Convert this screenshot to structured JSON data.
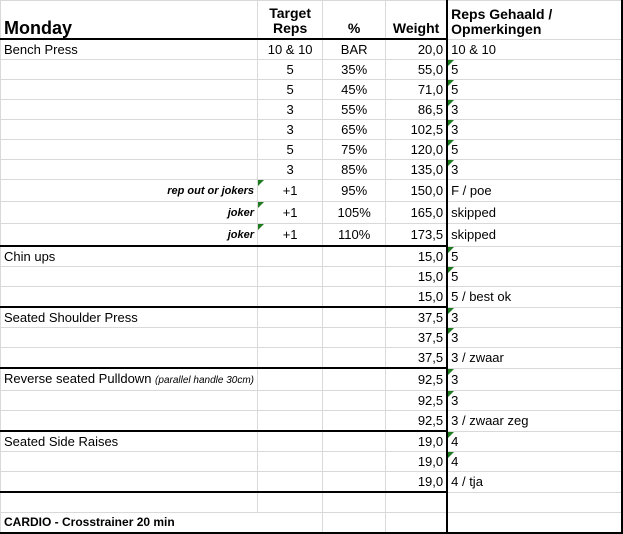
{
  "header": {
    "day": "Monday",
    "target_reps": "Target Reps",
    "percent": "%",
    "weight": "Weight",
    "reps_achieved": "Reps Gehaald / Opmerkingen"
  },
  "rows": [
    {
      "exercise": "Bench Press",
      "note": "",
      "label": "",
      "reps": "10 & 10",
      "pct": "BAR",
      "weight": "20,0",
      "result": "10 & 10",
      "flag": false,
      "labelflag": false,
      "sep": false
    },
    {
      "exercise": "",
      "note": "",
      "label": "",
      "reps": "5",
      "pct": "35%",
      "weight": "55,0",
      "result": "5",
      "flag": true,
      "labelflag": false,
      "sep": false
    },
    {
      "exercise": "",
      "note": "",
      "label": "",
      "reps": "5",
      "pct": "45%",
      "weight": "71,0",
      "result": "5",
      "flag": true,
      "labelflag": false,
      "sep": false
    },
    {
      "exercise": "",
      "note": "",
      "label": "",
      "reps": "3",
      "pct": "55%",
      "weight": "86,5",
      "result": "3",
      "flag": true,
      "labelflag": false,
      "sep": false
    },
    {
      "exercise": "",
      "note": "",
      "label": "",
      "reps": "3",
      "pct": "65%",
      "weight": "102,5",
      "result": "3",
      "flag": true,
      "labelflag": false,
      "sep": false
    },
    {
      "exercise": "",
      "note": "",
      "label": "",
      "reps": "5",
      "pct": "75%",
      "weight": "120,0",
      "result": "5",
      "flag": true,
      "labelflag": false,
      "sep": false
    },
    {
      "exercise": "",
      "note": "",
      "label": "",
      "reps": "3",
      "pct": "85%",
      "weight": "135,0",
      "result": "3",
      "flag": true,
      "labelflag": false,
      "sep": false
    },
    {
      "exercise": "",
      "note": "",
      "label": "rep out or jokers",
      "reps": "+1",
      "pct": "95%",
      "weight": "150,0",
      "result": "F / poe",
      "flag": false,
      "labelflag": true,
      "sep": false
    },
    {
      "exercise": "",
      "note": "",
      "label": "joker",
      "reps": "+1",
      "pct": "105%",
      "weight": "165,0",
      "result": "skipped",
      "flag": false,
      "labelflag": true,
      "sep": false
    },
    {
      "exercise": "",
      "note": "",
      "label": "joker",
      "reps": "+1",
      "pct": "110%",
      "weight": "173,5",
      "result": "skipped",
      "flag": false,
      "labelflag": true,
      "sep": false
    },
    {
      "exercise": "Chin ups",
      "note": "",
      "label": "",
      "reps": "",
      "pct": "",
      "weight": "15,0",
      "result": "5",
      "flag": true,
      "labelflag": false,
      "sep": true
    },
    {
      "exercise": "",
      "note": "",
      "label": "",
      "reps": "",
      "pct": "",
      "weight": "15,0",
      "result": "5",
      "flag": true,
      "labelflag": false,
      "sep": false
    },
    {
      "exercise": "",
      "note": "",
      "label": "",
      "reps": "",
      "pct": "",
      "weight": "15,0",
      "result": "5 / best ok",
      "flag": false,
      "labelflag": false,
      "sep": false
    },
    {
      "exercise": "Seated Shoulder Press",
      "note": "",
      "label": "",
      "reps": "",
      "pct": "",
      "weight": "37,5",
      "result": "3",
      "flag": true,
      "labelflag": false,
      "sep": true
    },
    {
      "exercise": "",
      "note": "",
      "label": "",
      "reps": "",
      "pct": "",
      "weight": "37,5",
      "result": "3",
      "flag": true,
      "labelflag": false,
      "sep": false
    },
    {
      "exercise": "",
      "note": "",
      "label": "",
      "reps": "",
      "pct": "",
      "weight": "37,5",
      "result": "3 / zwaar",
      "flag": false,
      "labelflag": false,
      "sep": false
    },
    {
      "exercise": "Reverse seated Pulldown",
      "note": "(parallel handle 30cm)",
      "label": "",
      "reps": "",
      "pct": "",
      "weight": "92,5",
      "result": "3",
      "flag": true,
      "labelflag": false,
      "sep": true
    },
    {
      "exercise": "",
      "note": "",
      "label": "",
      "reps": "",
      "pct": "",
      "weight": "92,5",
      "result": "3",
      "flag": true,
      "labelflag": false,
      "sep": false
    },
    {
      "exercise": "",
      "note": "",
      "label": "",
      "reps": "",
      "pct": "",
      "weight": "92,5",
      "result": "3 / zwaar zeg",
      "flag": false,
      "labelflag": false,
      "sep": false
    },
    {
      "exercise": "Seated Side Raises",
      "note": "",
      "label": "",
      "reps": "",
      "pct": "",
      "weight": "19,0",
      "result": "4",
      "flag": true,
      "labelflag": false,
      "sep": true
    },
    {
      "exercise": "",
      "note": "",
      "label": "",
      "reps": "",
      "pct": "",
      "weight": "19,0",
      "result": "4",
      "flag": true,
      "labelflag": false,
      "sep": false
    },
    {
      "exercise": "",
      "note": "",
      "label": "",
      "reps": "",
      "pct": "",
      "weight": "19,0",
      "result": "4 / tja",
      "flag": false,
      "labelflag": false,
      "sep": false
    },
    {
      "exercise": "",
      "note": "",
      "label": "",
      "reps": "",
      "pct": "",
      "weight": "",
      "result": "",
      "flag": false,
      "labelflag": false,
      "sep": true
    }
  ],
  "cardio": "CARDIO - Crosstrainer 20 min",
  "colors": {
    "flag": "#1e7a1e",
    "grid": "#d9d9d9"
  }
}
